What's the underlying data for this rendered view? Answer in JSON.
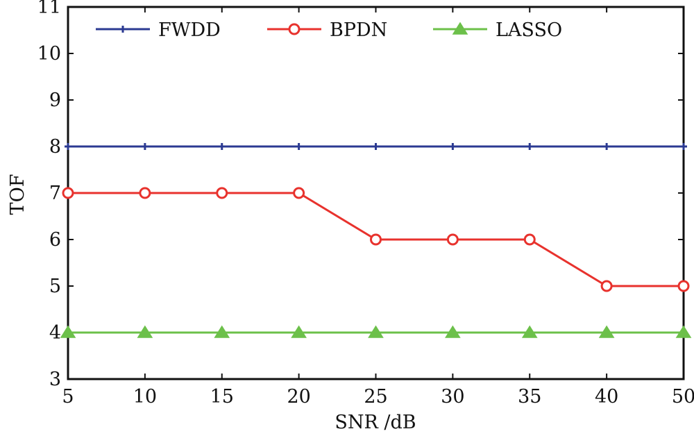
{
  "chart_data": {
    "type": "line",
    "title": "",
    "xlabel": "SNR /dB",
    "ylabel": "TOF",
    "x": [
      5,
      10,
      15,
      20,
      25,
      30,
      35,
      40,
      50
    ],
    "x_tick_labels": [
      "5",
      "10",
      "15",
      "20",
      "25",
      "30",
      "35",
      "40",
      "50"
    ],
    "y_ticks": [
      3,
      4,
      5,
      6,
      7,
      8,
      9,
      10,
      11
    ],
    "ylim": [
      3,
      11
    ],
    "grid": false,
    "legend_position": "top",
    "series": [
      {
        "name": "FWDD",
        "values": [
          8,
          8,
          8,
          8,
          8,
          8,
          8,
          8,
          8
        ],
        "color": "#2b3a92",
        "marker": "plus"
      },
      {
        "name": "BPDN",
        "values": [
          7,
          7,
          7,
          7,
          6,
          6,
          6,
          5,
          5
        ],
        "color": "#e8322d",
        "marker": "circle"
      },
      {
        "name": "LASSO",
        "values": [
          4,
          4,
          4,
          4,
          4,
          4,
          4,
          4,
          4
        ],
        "color": "#6cc04a",
        "marker": "triangle"
      }
    ]
  }
}
